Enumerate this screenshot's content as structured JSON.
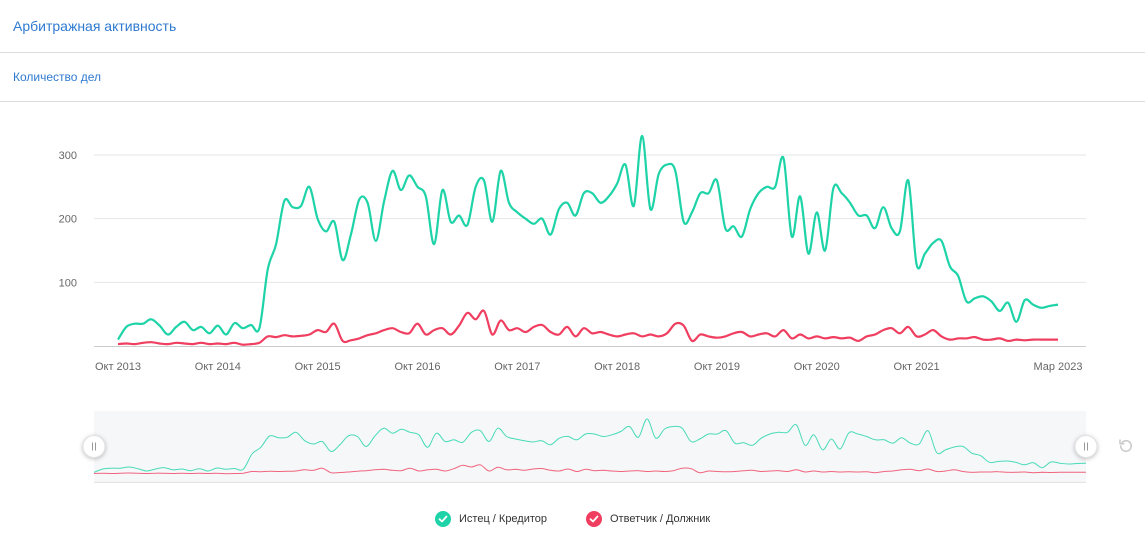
{
  "header": {
    "title": "Арбитражная активность"
  },
  "subheader": {
    "title": "Количество дел"
  },
  "colors": {
    "plaintiff": "#1dd3a7",
    "defendant": "#ef3e5f",
    "accent": "#2f7ad1",
    "grid": "#e6e6e6"
  },
  "icons": {
    "legend_check": "check-icon",
    "reset": "reset-icon",
    "handle": "slider-handle-icon"
  },
  "chart_data": {
    "type": "line",
    "x_range": [
      "2013-10",
      "2023-03"
    ],
    "ylim": [
      0,
      320
    ],
    "y_ticks": [
      100,
      200,
      300
    ],
    "x_ticks": [
      {
        "x": "2013-10",
        "label": "Окт 2013"
      },
      {
        "x": "2014-10",
        "label": "Окт 2014"
      },
      {
        "x": "2015-10",
        "label": "Окт 2015"
      },
      {
        "x": "2016-10",
        "label": "Окт 2016"
      },
      {
        "x": "2017-10",
        "label": "Окт 2017"
      },
      {
        "x": "2018-10",
        "label": "Окт 2018"
      },
      {
        "x": "2019-10",
        "label": "Окт 2019"
      },
      {
        "x": "2020-10",
        "label": "Окт 2020"
      },
      {
        "x": "2021-10",
        "label": "Окт 2021"
      },
      {
        "x": "2023-03",
        "label": "Мар 2023"
      }
    ],
    "grid": true,
    "legend_position": "bottom-center",
    "series": [
      {
        "name": "Истец / Кредитор",
        "values": [
          [
            "2013-10",
            10
          ],
          [
            "2013-11",
            30
          ],
          [
            "2013-12",
            35
          ],
          [
            "2014-01",
            35
          ],
          [
            "2014-02",
            42
          ],
          [
            "2014-03",
            32
          ],
          [
            "2014-04",
            18
          ],
          [
            "2014-05",
            30
          ],
          [
            "2014-06",
            38
          ],
          [
            "2014-07",
            25
          ],
          [
            "2014-08",
            30
          ],
          [
            "2014-09",
            20
          ],
          [
            "2014-10",
            32
          ],
          [
            "2014-11",
            18
          ],
          [
            "2014-12",
            36
          ],
          [
            "2015-01",
            28
          ],
          [
            "2015-02",
            33
          ],
          [
            "2015-03",
            28
          ],
          [
            "2015-04",
            120
          ],
          [
            "2015-05",
            160
          ],
          [
            "2015-06",
            228
          ],
          [
            "2015-07",
            218
          ],
          [
            "2015-08",
            220
          ],
          [
            "2015-09",
            250
          ],
          [
            "2015-10",
            200
          ],
          [
            "2015-11",
            180
          ],
          [
            "2015-12",
            195
          ],
          [
            "2016-01",
            135
          ],
          [
            "2016-02",
            175
          ],
          [
            "2016-03",
            230
          ],
          [
            "2016-04",
            225
          ],
          [
            "2016-05",
            165
          ],
          [
            "2016-06",
            228
          ],
          [
            "2016-07",
            275
          ],
          [
            "2016-08",
            245
          ],
          [
            "2016-09",
            268
          ],
          [
            "2016-10",
            250
          ],
          [
            "2016-11",
            235
          ],
          [
            "2016-12",
            160
          ],
          [
            "2017-01",
            245
          ],
          [
            "2017-02",
            195
          ],
          [
            "2017-03",
            205
          ],
          [
            "2017-04",
            190
          ],
          [
            "2017-05",
            250
          ],
          [
            "2017-06",
            260
          ],
          [
            "2017-07",
            195
          ],
          [
            "2017-08",
            275
          ],
          [
            "2017-09",
            225
          ],
          [
            "2017-10",
            210
          ],
          [
            "2017-11",
            200
          ],
          [
            "2017-12",
            192
          ],
          [
            "2018-01",
            200
          ],
          [
            "2018-02",
            175
          ],
          [
            "2018-03",
            215
          ],
          [
            "2018-04",
            225
          ],
          [
            "2018-05",
            205
          ],
          [
            "2018-06",
            240
          ],
          [
            "2018-07",
            240
          ],
          [
            "2018-08",
            225
          ],
          [
            "2018-09",
            235
          ],
          [
            "2018-10",
            255
          ],
          [
            "2018-11",
            285
          ],
          [
            "2018-12",
            220
          ],
          [
            "2019-01",
            330
          ],
          [
            "2019-02",
            215
          ],
          [
            "2019-03",
            270
          ],
          [
            "2019-04",
            285
          ],
          [
            "2019-05",
            275
          ],
          [
            "2019-06",
            195
          ],
          [
            "2019-07",
            210
          ],
          [
            "2019-08",
            240
          ],
          [
            "2019-09",
            240
          ],
          [
            "2019-10",
            260
          ],
          [
            "2019-11",
            185
          ],
          [
            "2019-12",
            188
          ],
          [
            "2020-01",
            172
          ],
          [
            "2020-02",
            215
          ],
          [
            "2020-03",
            240
          ],
          [
            "2020-04",
            250
          ],
          [
            "2020-05",
            250
          ],
          [
            "2020-06",
            295
          ],
          [
            "2020-07",
            172
          ],
          [
            "2020-08",
            235
          ],
          [
            "2020-09",
            145
          ],
          [
            "2020-10",
            210
          ],
          [
            "2020-11",
            150
          ],
          [
            "2020-12",
            248
          ],
          [
            "2021-01",
            240
          ],
          [
            "2021-02",
            225
          ],
          [
            "2021-03",
            205
          ],
          [
            "2021-04",
            205
          ],
          [
            "2021-05",
            185
          ],
          [
            "2021-06",
            218
          ],
          [
            "2021-07",
            185
          ],
          [
            "2021-08",
            180
          ],
          [
            "2021-09",
            260
          ],
          [
            "2021-10",
            128
          ],
          [
            "2021-11",
            145
          ],
          [
            "2021-12",
            162
          ],
          [
            "2022-01",
            165
          ],
          [
            "2022-02",
            125
          ],
          [
            "2022-03",
            110
          ],
          [
            "2022-04",
            70
          ],
          [
            "2022-05",
            75
          ],
          [
            "2022-06",
            78
          ],
          [
            "2022-07",
            70
          ],
          [
            "2022-08",
            55
          ],
          [
            "2022-09",
            68
          ],
          [
            "2022-10",
            38
          ],
          [
            "2022-11",
            72
          ],
          [
            "2022-12",
            65
          ],
          [
            "2023-01",
            60
          ],
          [
            "2023-02",
            63
          ],
          [
            "2023-03",
            65
          ]
        ]
      },
      {
        "name": "Ответчик / Должник",
        "values": [
          [
            "2013-10",
            3
          ],
          [
            "2013-11",
            4
          ],
          [
            "2013-12",
            3
          ],
          [
            "2014-01",
            5
          ],
          [
            "2014-02",
            6
          ],
          [
            "2014-03",
            4
          ],
          [
            "2014-04",
            3
          ],
          [
            "2014-05",
            5
          ],
          [
            "2014-06",
            4
          ],
          [
            "2014-07",
            3
          ],
          [
            "2014-08",
            5
          ],
          [
            "2014-09",
            3
          ],
          [
            "2014-10",
            4
          ],
          [
            "2014-11",
            3
          ],
          [
            "2014-12",
            5
          ],
          [
            "2015-01",
            2
          ],
          [
            "2015-02",
            3
          ],
          [
            "2015-03",
            5
          ],
          [
            "2015-04",
            15
          ],
          [
            "2015-05",
            14
          ],
          [
            "2015-06",
            17
          ],
          [
            "2015-07",
            15
          ],
          [
            "2015-08",
            16
          ],
          [
            "2015-09",
            18
          ],
          [
            "2015-10",
            25
          ],
          [
            "2015-11",
            22
          ],
          [
            "2015-12",
            35
          ],
          [
            "2016-01",
            8
          ],
          [
            "2016-02",
            9
          ],
          [
            "2016-03",
            12
          ],
          [
            "2016-04",
            17
          ],
          [
            "2016-05",
            20
          ],
          [
            "2016-06",
            25
          ],
          [
            "2016-07",
            28
          ],
          [
            "2016-08",
            22
          ],
          [
            "2016-09",
            20
          ],
          [
            "2016-10",
            35
          ],
          [
            "2016-11",
            18
          ],
          [
            "2016-12",
            25
          ],
          [
            "2017-01",
            28
          ],
          [
            "2017-02",
            18
          ],
          [
            "2017-03",
            32
          ],
          [
            "2017-04",
            52
          ],
          [
            "2017-05",
            42
          ],
          [
            "2017-06",
            55
          ],
          [
            "2017-07",
            18
          ],
          [
            "2017-08",
            40
          ],
          [
            "2017-09",
            25
          ],
          [
            "2017-10",
            28
          ],
          [
            "2017-11",
            22
          ],
          [
            "2017-12",
            30
          ],
          [
            "2018-01",
            33
          ],
          [
            "2018-02",
            22
          ],
          [
            "2018-03",
            18
          ],
          [
            "2018-04",
            30
          ],
          [
            "2018-05",
            15
          ],
          [
            "2018-06",
            28
          ],
          [
            "2018-07",
            20
          ],
          [
            "2018-08",
            22
          ],
          [
            "2018-09",
            18
          ],
          [
            "2018-10",
            15
          ],
          [
            "2018-11",
            18
          ],
          [
            "2018-12",
            20
          ],
          [
            "2019-01",
            15
          ],
          [
            "2019-02",
            18
          ],
          [
            "2019-03",
            15
          ],
          [
            "2019-04",
            20
          ],
          [
            "2019-05",
            35
          ],
          [
            "2019-06",
            32
          ],
          [
            "2019-07",
            8
          ],
          [
            "2019-08",
            18
          ],
          [
            "2019-09",
            15
          ],
          [
            "2019-10",
            13
          ],
          [
            "2019-11",
            15
          ],
          [
            "2019-12",
            20
          ],
          [
            "2020-01",
            22
          ],
          [
            "2020-02",
            15
          ],
          [
            "2020-03",
            18
          ],
          [
            "2020-04",
            20
          ],
          [
            "2020-05",
            15
          ],
          [
            "2020-06",
            25
          ],
          [
            "2020-07",
            12
          ],
          [
            "2020-08",
            18
          ],
          [
            "2020-09",
            12
          ],
          [
            "2020-10",
            15
          ],
          [
            "2020-11",
            12
          ],
          [
            "2020-12",
            14
          ],
          [
            "2021-01",
            12
          ],
          [
            "2021-02",
            13
          ],
          [
            "2021-03",
            8
          ],
          [
            "2021-04",
            15
          ],
          [
            "2021-05",
            18
          ],
          [
            "2021-06",
            25
          ],
          [
            "2021-07",
            28
          ],
          [
            "2021-08",
            20
          ],
          [
            "2021-09",
            30
          ],
          [
            "2021-10",
            15
          ],
          [
            "2021-11",
            18
          ],
          [
            "2021-12",
            25
          ],
          [
            "2022-01",
            15
          ],
          [
            "2022-02",
            10
          ],
          [
            "2022-03",
            12
          ],
          [
            "2022-04",
            12
          ],
          [
            "2022-05",
            14
          ],
          [
            "2022-06",
            10
          ],
          [
            "2022-07",
            10
          ],
          [
            "2022-08",
            12
          ],
          [
            "2022-09",
            8
          ],
          [
            "2022-10",
            10
          ],
          [
            "2022-11",
            9
          ],
          [
            "2022-12",
            10
          ],
          [
            "2023-01",
            10
          ],
          [
            "2023-02",
            10
          ],
          [
            "2023-03",
            10
          ]
        ]
      }
    ]
  }
}
